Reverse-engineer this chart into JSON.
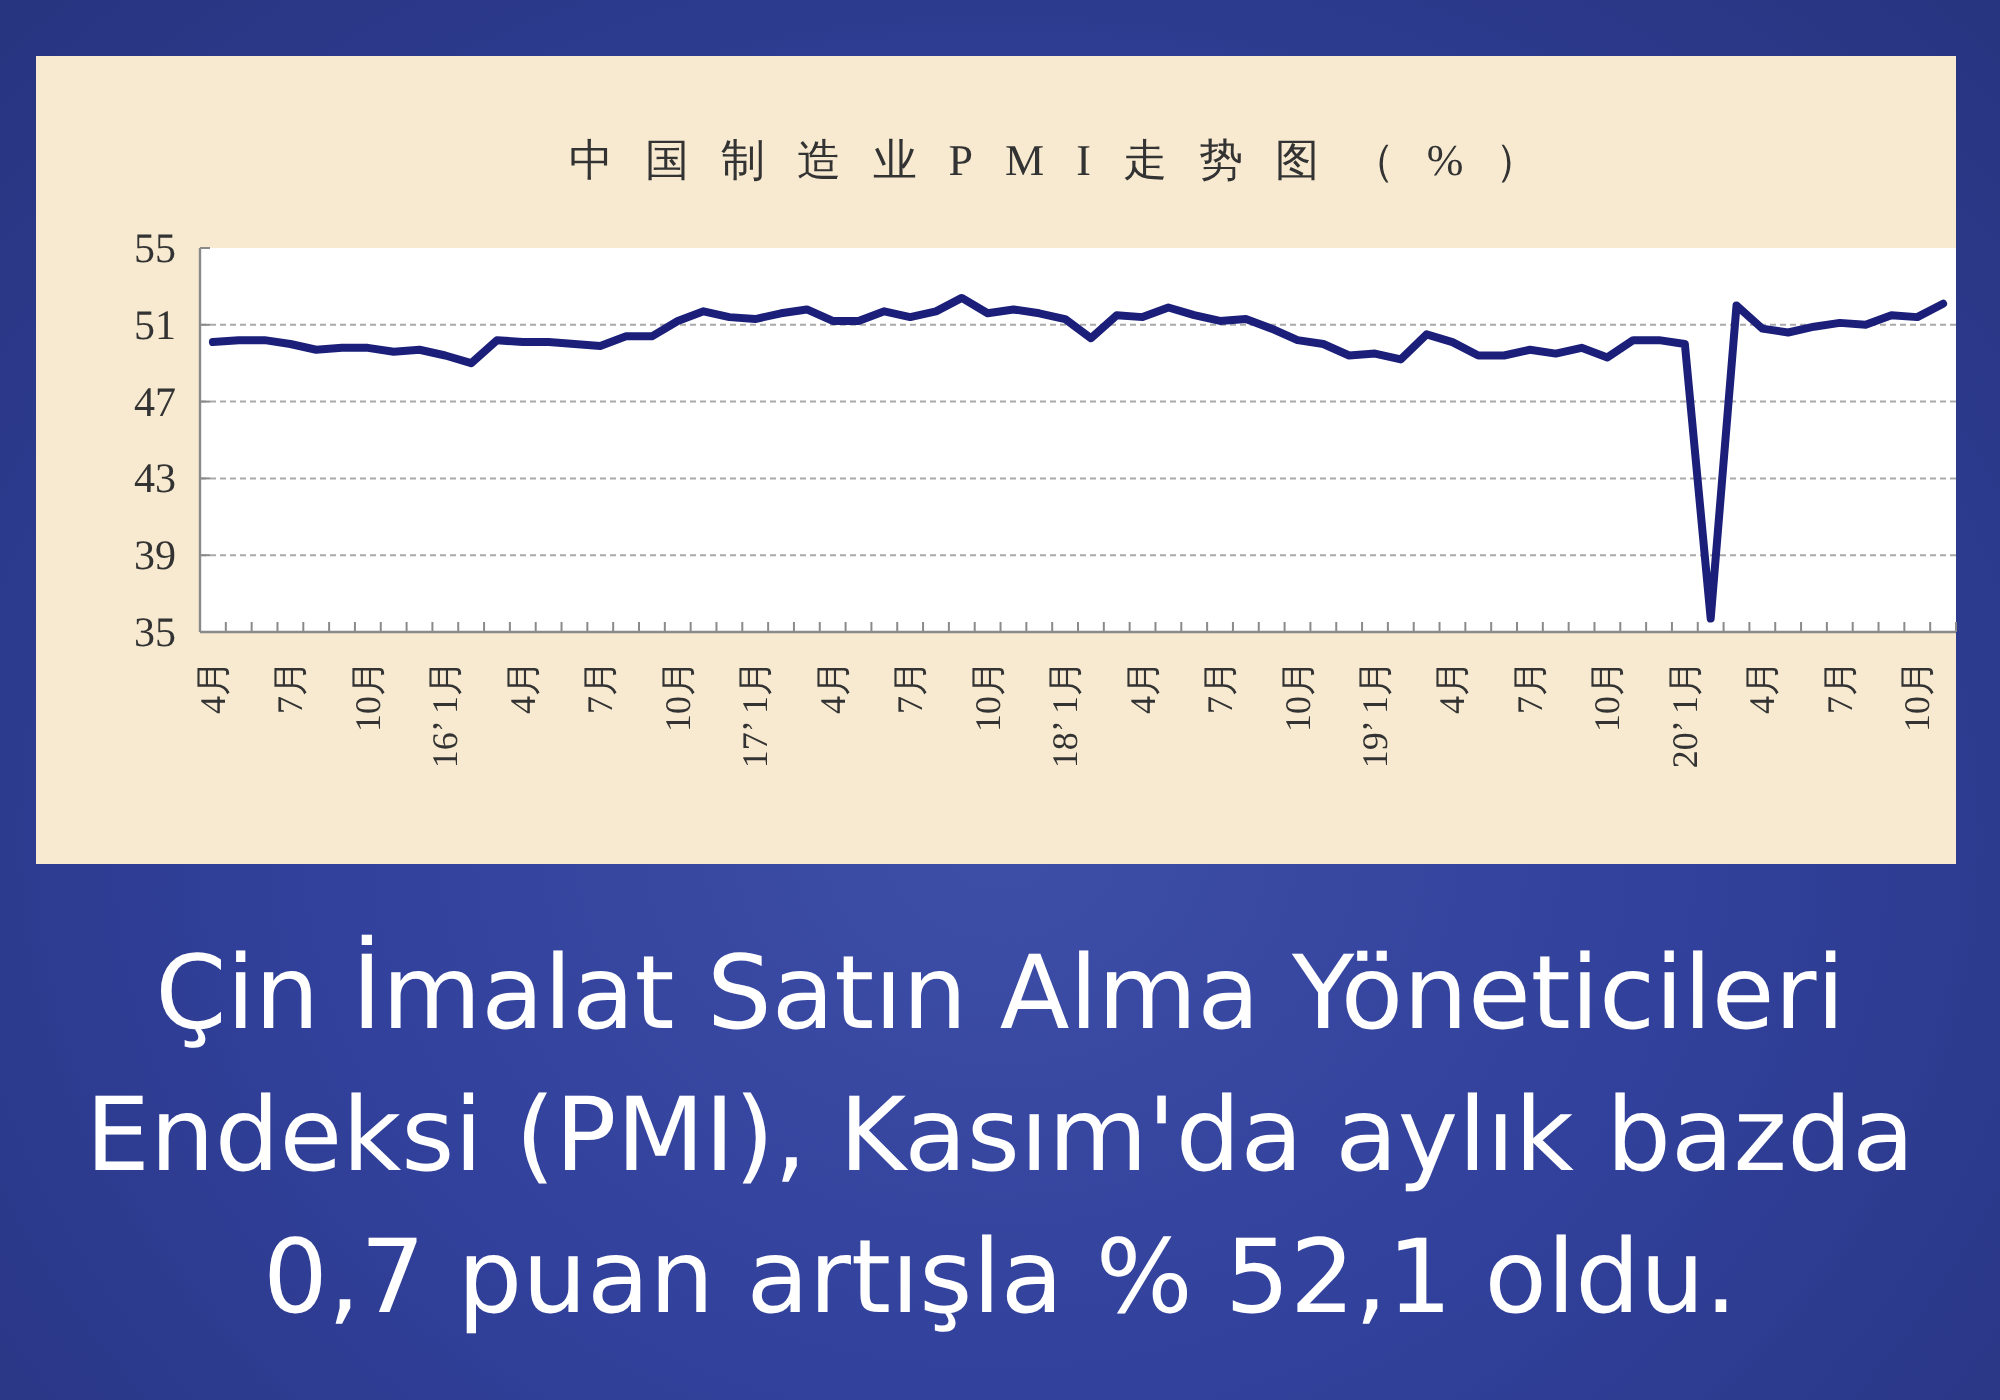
{
  "chart_data": {
    "type": "line",
    "title": "中国制造业PMI走势图（%）",
    "categories": [
      "4月",
      null,
      null,
      "7月",
      null,
      null,
      "10月",
      null,
      null,
      "16’ 1月",
      null,
      null,
      "4月",
      null,
      null,
      "7月",
      null,
      null,
      "10月",
      null,
      null,
      "17’ 1月",
      null,
      null,
      "4月",
      null,
      null,
      "7月",
      null,
      null,
      "10月",
      null,
      null,
      "18’ 1月",
      null,
      null,
      "4月",
      null,
      null,
      "7月",
      null,
      null,
      "10月",
      null,
      null,
      "19’ 1月",
      null,
      null,
      "4月",
      null,
      null,
      "7月",
      null,
      null,
      "10月",
      null,
      null,
      "20’ 1月",
      null,
      null,
      "4月",
      null,
      null,
      "7月",
      null,
      null,
      "10月",
      null
    ],
    "values": [
      50.1,
      50.2,
      50.2,
      50.0,
      49.7,
      49.8,
      49.8,
      49.6,
      49.7,
      49.4,
      49.0,
      50.2,
      50.1,
      50.1,
      50.0,
      49.9,
      50.4,
      50.4,
      51.2,
      51.7,
      51.4,
      51.3,
      51.6,
      51.8,
      51.2,
      51.2,
      51.7,
      51.4,
      51.7,
      52.4,
      51.6,
      51.8,
      51.6,
      51.3,
      50.3,
      51.5,
      51.4,
      51.9,
      51.5,
      51.2,
      51.3,
      50.8,
      50.2,
      50.0,
      49.4,
      49.5,
      49.2,
      50.5,
      50.1,
      49.4,
      49.4,
      49.7,
      49.5,
      49.8,
      49.3,
      50.2,
      50.2,
      50.0,
      35.7,
      52.0,
      50.8,
      50.6,
      50.9,
      51.1,
      51.0,
      51.5,
      51.4,
      52.1
    ],
    "color": "#1b1f7a",
    "ylim": [
      35,
      55
    ],
    "yticks": [
      35,
      39,
      43,
      47,
      51,
      55
    ],
    "grid": "y",
    "annotations": [
      "Çin İmalat Satın Alma Yöneticileri Endeksi (PMI), Kasım'da aylık bazda 0,7 puan artışla % 52,1 oldu."
    ]
  }
}
